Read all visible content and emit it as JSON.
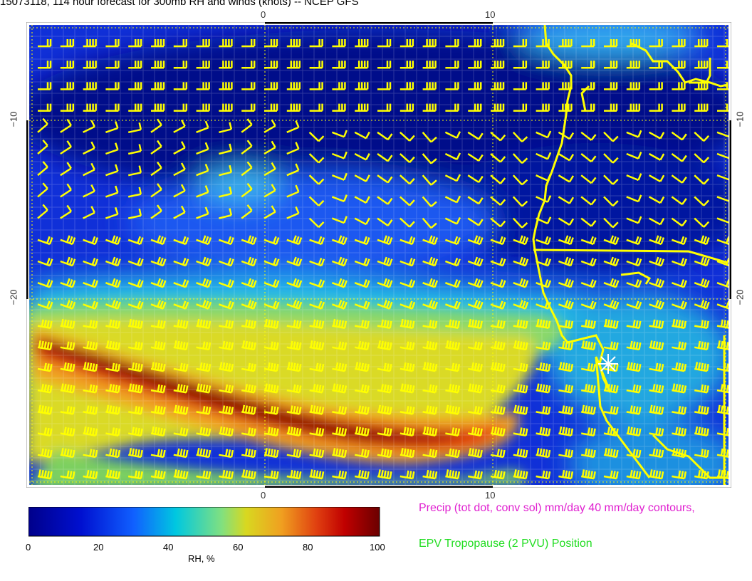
{
  "title": "15073118, 114 hour forecast for 300mb RH and winds (knots) -- NCEP GFS",
  "axes": {
    "top_ticks": [
      "0",
      "10"
    ],
    "bottom_ticks": [
      "0",
      "10"
    ],
    "left_ticks": [
      "−10",
      "−20"
    ],
    "right_ticks": [
      "−10",
      "−20"
    ]
  },
  "colorbar": {
    "title": "RH, %",
    "tick_labels": [
      "0",
      "20",
      "40",
      "60",
      "80",
      "100"
    ],
    "colors": [
      "#00008b",
      "#0040ff",
      "#00c8e0",
      "#c8d830",
      "#e04010",
      "#6b0000"
    ]
  },
  "legend": {
    "precip": "Precip (tot dot, conv sol) mm/day 40 mm/day contours,",
    "epv": "EPV Tropopause (2 PVU) Position"
  },
  "colors": {
    "barb": "#ffff00",
    "coast": "#ffff00",
    "legend_precip": "#e020d0",
    "legend_epv": "#22dd22"
  },
  "map": {
    "symbols": [
      "wind-barbs",
      "coastline",
      "star-marker"
    ]
  }
}
